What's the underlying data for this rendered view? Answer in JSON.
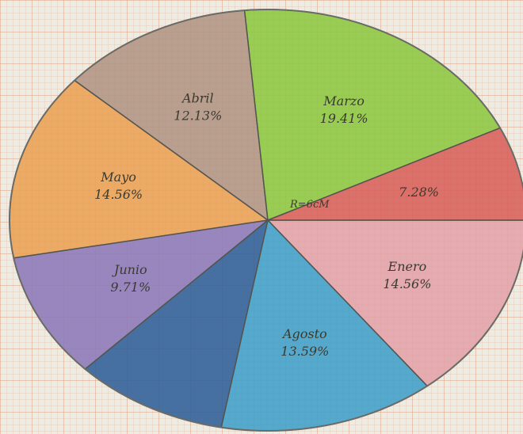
{
  "chart_data": {
    "type": "pie",
    "title": "",
    "radius_label": "R=6cM",
    "slices": [
      {
        "name": "Enero",
        "value": 14.56,
        "label": "14.56%",
        "color": "#e3a2a9"
      },
      {
        "name": "Agosto",
        "value": 13.59,
        "label": "13.59%",
        "color": "#3f9fc9"
      },
      {
        "name": "",
        "value": 9.71,
        "label": "",
        "color": "#2f5e97"
      },
      {
        "name": "Junio",
        "value": 9.71,
        "label": "9.71%",
        "color": "#8c79ba"
      },
      {
        "name": "Mayo",
        "value": 14.56,
        "label": "14.56%",
        "color": "#eaa154"
      },
      {
        "name": "Abril",
        "value": 12.13,
        "label": "12.13%",
        "color": "#b09483"
      },
      {
        "name": "Marzo",
        "value": 19.41,
        "label": "19.41%",
        "color": "#8cc741"
      },
      {
        "name": "",
        "value": 7.28,
        "label": "7.28%",
        "color": "#d8605a"
      }
    ]
  }
}
